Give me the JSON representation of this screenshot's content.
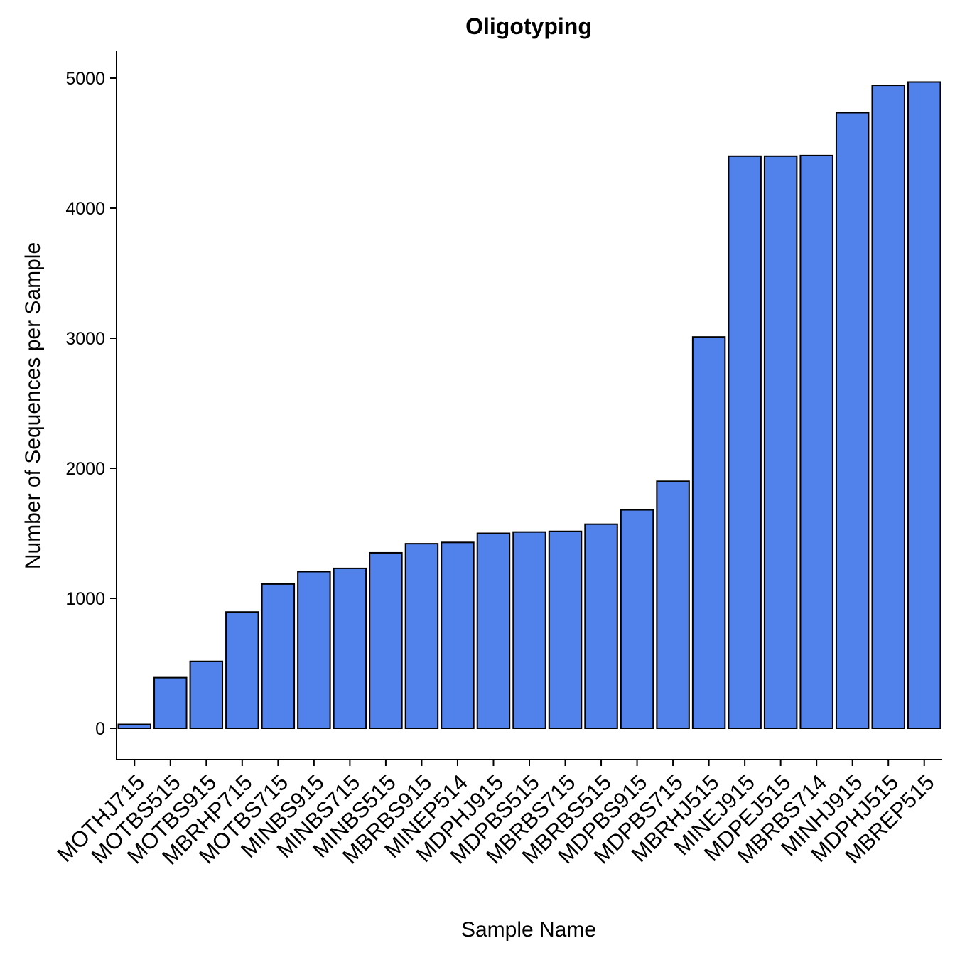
{
  "chart_data": {
    "type": "bar",
    "title": "Oligotyping",
    "xlabel": "Sample Name",
    "ylabel": "Number of Sequences per Sample",
    "ylim": [
      -240,
      5220
    ],
    "yticks": [
      0,
      1000,
      2000,
      3000,
      4000,
      5000
    ],
    "grid": false,
    "legend": "none",
    "bar_color": "#5181EA",
    "categories": [
      "MOTHJ715",
      "MOTBS515",
      "MOTBS915",
      "MBRHP715",
      "MOTBS715",
      "MINBS915",
      "MINBS715",
      "MINBS515",
      "MBRBS915",
      "MINEP514",
      "MDPHJ915",
      "MDPBS515",
      "MBRBS715",
      "MBRBS515",
      "MDPBS915",
      "MDPBS715",
      "MBRHJ515",
      "MINEJ915",
      "MDPEJ515",
      "MBRBS714",
      "MINHJ915",
      "MDPHJ515",
      "MBREP515"
    ],
    "values": [
      30,
      390,
      515,
      895,
      1110,
      1205,
      1230,
      1350,
      1420,
      1430,
      1500,
      1510,
      1515,
      1570,
      1680,
      1900,
      3010,
      4400,
      4400,
      4405,
      4735,
      4945,
      4970
    ]
  }
}
